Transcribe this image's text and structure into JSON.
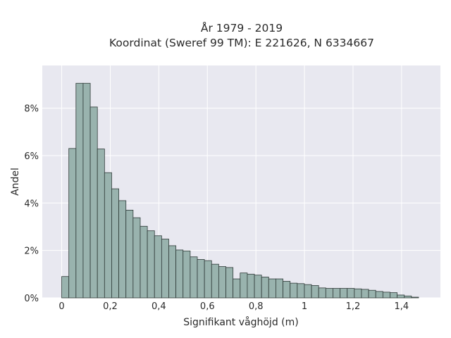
{
  "chart_data": {
    "type": "bar",
    "title_line1": "År 1979 - 2019",
    "title_line2": "Koordinat (Sweref 99 TM): E 221626, N 6334667",
    "xlabel": "Signifikant våghöjd (m)",
    "ylabel": "Andel",
    "xlim": [
      -0.08,
      1.56
    ],
    "ylim": [
      0,
      9.8
    ],
    "bin_width": 0.0294,
    "bin_start": 0,
    "x_ticks": [
      0,
      0.2,
      0.4,
      0.6,
      0.8,
      1.0,
      1.2,
      1.4
    ],
    "x_tick_labels": [
      "0",
      "0,2",
      "0,4",
      "0,6",
      "0,8",
      "1",
      "1,2",
      "1,4"
    ],
    "y_ticks": [
      0,
      2,
      4,
      6,
      8
    ],
    "y_tick_labels": [
      "0%",
      "2%",
      "4%",
      "6%",
      "8%"
    ],
    "values": [
      0.9,
      6.3,
      9.05,
      9.05,
      8.05,
      6.28,
      5.28,
      4.6,
      4.1,
      3.7,
      3.38,
      3.02,
      2.83,
      2.62,
      2.48,
      2.2,
      2.02,
      1.98,
      1.73,
      1.62,
      1.57,
      1.42,
      1.32,
      1.28,
      0.8,
      1.05,
      1.0,
      0.96,
      0.88,
      0.8,
      0.8,
      0.7,
      0.62,
      0.6,
      0.56,
      0.52,
      0.42,
      0.4,
      0.4,
      0.4,
      0.4,
      0.38,
      0.36,
      0.32,
      0.27,
      0.24,
      0.22,
      0.12,
      0.08,
      0.03
    ],
    "grid": true,
    "colors": {
      "bar_fill": "#99b3ae",
      "bar_stroke": "#2f3a38",
      "plot_bg": "#e8e8f0",
      "grid": "#ffffff"
    }
  }
}
